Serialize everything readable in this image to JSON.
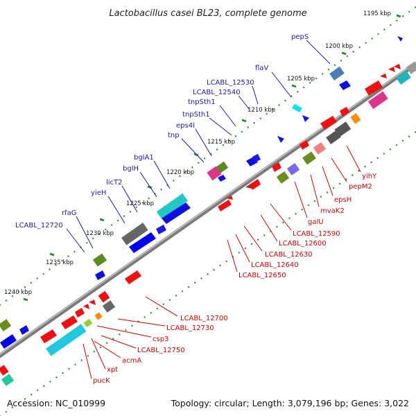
{
  "title": "Lactobacillus casei BL23, complete genome",
  "footer": {
    "accession": "Accession: NC_010999",
    "topology": "Topology: circular; Length: 3,079,196 bp; Genes: 3,022"
  },
  "ruler_labels": [
    "1195 kbp",
    "1200 kbp",
    "1205 kbp",
    "1210 kbp",
    "1215 kbp",
    "1220 kbp",
    "1225 kbp",
    "1230 kbp",
    "1235 kbp",
    "1240 kbp"
  ],
  "forward_gene_labels": [
    "pepS",
    "flaV",
    "LCABL_12530",
    "LCABL_12540",
    "tnpSth1",
    "tnpSth1",
    "eps4I",
    "tnp",
    "bglA1",
    "bglH",
    "licT2",
    "yieH",
    "rfaG",
    "LCABL_12720"
  ],
  "reverse_gene_labels": [
    "yihY",
    "pepM2",
    "epsH",
    "mvaK2",
    "galU",
    "LCABL_12590",
    "LCABL_12600",
    "LCABL_12630",
    "LCABL_12640",
    "LCABL_12650",
    "LCABL_12700",
    "LCABL_12730",
    "csp3",
    "LCABL_12750",
    "acmA",
    "xpt",
    "pucK"
  ],
  "colors": {
    "forward_label": "#1a1aa6",
    "reverse_label": "#cc0000",
    "backbone": "#8a8a8a",
    "ruler_dots": "#2e8b2e"
  }
}
